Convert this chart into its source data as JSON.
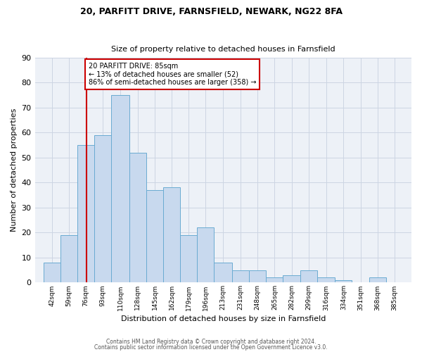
{
  "title1": "20, PARFITT DRIVE, FARNSFIELD, NEWARK, NG22 8FA",
  "title2": "Size of property relative to detached houses in Farnsfield",
  "xlabel": "Distribution of detached houses by size in Farnsfield",
  "ylabel": "Number of detached properties",
  "bin_labels": [
    "42sqm",
    "59sqm",
    "76sqm",
    "93sqm",
    "110sqm",
    "128sqm",
    "145sqm",
    "162sqm",
    "179sqm",
    "196sqm",
    "213sqm",
    "231sqm",
    "248sqm",
    "265sqm",
    "282sqm",
    "299sqm",
    "316sqm",
    "334sqm",
    "351sqm",
    "368sqm",
    "385sqm"
  ],
  "bar_heights": [
    8,
    19,
    55,
    59,
    75,
    52,
    37,
    38,
    19,
    22,
    8,
    5,
    5,
    2,
    3,
    5,
    2,
    1,
    0,
    2,
    0
  ],
  "bar_color": "#c8d9ee",
  "bar_edge_color": "#6aabd2",
  "grid_color": "#ccd5e3",
  "background_color": "#edf1f7",
  "property_line_color": "#cc0000",
  "annotation_text": "20 PARFITT DRIVE: 85sqm\n← 13% of detached houses are smaller (52)\n86% of semi-detached houses are larger (358) →",
  "annotation_box_color": "#cc0000",
  "ylim": [
    0,
    90
  ],
  "yticks": [
    0,
    10,
    20,
    30,
    40,
    50,
    60,
    70,
    80,
    90
  ],
  "bin_edges_values": [
    42,
    59,
    76,
    93,
    110,
    128,
    145,
    162,
    179,
    196,
    213,
    231,
    248,
    265,
    282,
    299,
    316,
    334,
    351,
    368,
    385
  ],
  "property_sqm": 85,
  "footer1": "Contains HM Land Registry data © Crown copyright and database right 2024.",
  "footer2": "Contains public sector information licensed under the Open Government Licence v3.0."
}
